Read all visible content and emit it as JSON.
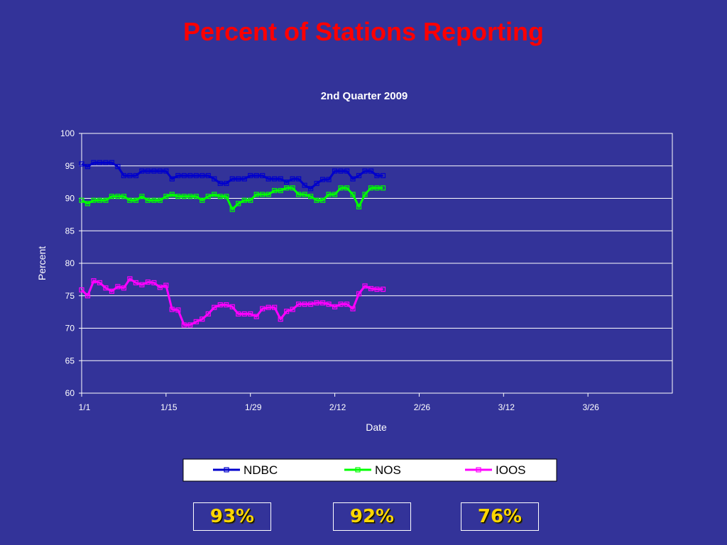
{
  "slide": {
    "title": "Percent of Stations Reporting"
  },
  "summary": {
    "values": [
      "93%",
      "92%",
      "76%"
    ]
  },
  "colors": {
    "background": "#333399",
    "title": "#ff0000",
    "NDBC": "#0000cc",
    "NOS": "#00ff00",
    "IOOS": "#ff00ff",
    "summary_text": "#ffd700"
  },
  "chart_data": {
    "type": "line",
    "title": "2nd Quarter 2009",
    "xlabel": "Date",
    "ylabel": "Percent",
    "ylim": [
      60,
      100
    ],
    "yticks": [
      "60",
      "65",
      "70",
      "75",
      "80",
      "85",
      "90",
      "95",
      "100"
    ],
    "xlim": [
      "2009-01-01",
      "2009-04-09"
    ],
    "xticks": [
      {
        "date": "2009-01-01",
        "label": "1/1"
      },
      {
        "date": "2009-01-15",
        "label": "1/15"
      },
      {
        "date": "2009-01-29",
        "label": "1/29"
      },
      {
        "date": "2009-02-12",
        "label": "2/12"
      },
      {
        "date": "2009-02-26",
        "label": "2/26"
      },
      {
        "date": "2009-03-12",
        "label": "3/12"
      },
      {
        "date": "2009-03-26",
        "label": "3/26"
      }
    ],
    "grid": true,
    "legend_position": "bottom",
    "x": [
      "2009-01-01",
      "2009-01-02",
      "2009-01-03",
      "2009-01-04",
      "2009-01-05",
      "2009-01-06",
      "2009-01-07",
      "2009-01-08",
      "2009-01-09",
      "2009-01-10",
      "2009-01-11",
      "2009-01-12",
      "2009-01-13",
      "2009-01-14",
      "2009-01-15",
      "2009-01-16",
      "2009-01-17",
      "2009-01-18",
      "2009-01-19",
      "2009-01-20",
      "2009-01-21",
      "2009-01-22",
      "2009-01-23",
      "2009-01-24",
      "2009-01-25",
      "2009-01-26",
      "2009-01-27",
      "2009-01-28",
      "2009-01-29",
      "2009-01-30",
      "2009-01-31",
      "2009-02-01",
      "2009-02-02",
      "2009-02-03",
      "2009-02-04",
      "2009-02-05",
      "2009-02-06",
      "2009-02-07",
      "2009-02-08",
      "2009-02-09",
      "2009-02-10",
      "2009-02-11",
      "2009-02-12",
      "2009-02-13",
      "2009-02-14",
      "2009-02-15",
      "2009-02-16",
      "2009-02-17",
      "2009-02-18",
      "2009-02-19",
      "2009-02-20"
    ],
    "series": [
      {
        "name": "NDBC",
        "values": [
          95.3,
          94.9,
          95.5,
          95.5,
          95.5,
          95.5,
          94.9,
          93.5,
          93.5,
          93.5,
          94.2,
          94.2,
          94.2,
          94.2,
          94.2,
          93.0,
          93.5,
          93.5,
          93.5,
          93.5,
          93.5,
          93.5,
          93.0,
          92.3,
          92.3,
          93.0,
          93.0,
          93.0,
          93.5,
          93.5,
          93.5,
          93.0,
          93.0,
          93.0,
          92.5,
          93.0,
          93.0,
          92.0,
          91.5,
          92.3,
          92.9,
          92.9,
          94.2,
          94.2,
          94.2,
          93.0,
          93.5,
          94.2,
          94.2,
          93.5,
          93.5
        ]
      },
      {
        "name": "NOS",
        "values": [
          89.7,
          89.2,
          89.7,
          89.7,
          89.7,
          90.3,
          90.3,
          90.3,
          89.7,
          89.7,
          90.3,
          89.7,
          89.7,
          89.7,
          90.3,
          90.6,
          90.3,
          90.3,
          90.3,
          90.3,
          89.7,
          90.3,
          90.6,
          90.3,
          90.3,
          88.3,
          89.2,
          89.7,
          89.7,
          90.6,
          90.6,
          90.6,
          91.2,
          91.2,
          91.6,
          91.6,
          90.6,
          90.6,
          90.3,
          89.7,
          89.7,
          90.6,
          90.6,
          91.6,
          91.6,
          90.6,
          88.7,
          90.6,
          91.6,
          91.6,
          91.6
        ]
      },
      {
        "name": "IOOS",
        "values": [
          75.9,
          75.0,
          77.3,
          77.0,
          76.2,
          75.7,
          76.4,
          76.2,
          77.6,
          77.0,
          76.7,
          77.1,
          77.0,
          76.3,
          76.6,
          72.9,
          72.8,
          70.5,
          70.5,
          71.0,
          71.4,
          72.2,
          73.2,
          73.6,
          73.6,
          73.3,
          72.2,
          72.2,
          72.2,
          71.8,
          73.0,
          73.2,
          73.2,
          71.4,
          72.6,
          72.9,
          73.7,
          73.7,
          73.7,
          73.9,
          73.9,
          73.7,
          73.3,
          73.7,
          73.7,
          73.0,
          75.3,
          76.5,
          76.1,
          76.0,
          76.0
        ]
      }
    ]
  }
}
